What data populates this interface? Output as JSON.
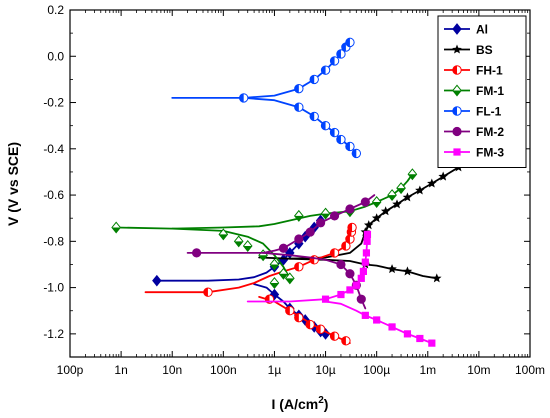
{
  "chart_data": {
    "type": "line",
    "x_scale": "log",
    "xlim": [
      1e-10,
      0.1
    ],
    "ylim": [
      -1.3,
      0.2
    ],
    "xlabel_main": "I (A/cm",
    "xlabel_sup": "2",
    "xlabel_tail": ")",
    "ylabel": "V (V vs SCE)",
    "grid": false,
    "legend_position": "top-right",
    "x_ticks": [
      {
        "v": 1e-10,
        "label": "100p"
      },
      {
        "v": 1e-09,
        "label": "1n"
      },
      {
        "v": 1e-08,
        "label": "10n"
      },
      {
        "v": 1e-07,
        "label": "100n"
      },
      {
        "v": 1e-06,
        "label": "1µ"
      },
      {
        "v": 1e-05,
        "label": "10µ"
      },
      {
        "v": 0.0001,
        "label": "100µ"
      },
      {
        "v": 0.001,
        "label": "1m"
      },
      {
        "v": 0.01,
        "label": "10m"
      },
      {
        "v": 0.1,
        "label": "100m"
      }
    ],
    "y_ticks": [
      {
        "v": 0.2,
        "label": "0.2"
      },
      {
        "v": 0.0,
        "label": "0.0"
      },
      {
        "v": -0.2,
        "label": "-0.2"
      },
      {
        "v": -0.4,
        "label": "-0.4"
      },
      {
        "v": -0.6,
        "label": "-0.6"
      },
      {
        "v": -0.8,
        "label": "-0.8"
      },
      {
        "v": -1.0,
        "label": "-1.0"
      },
      {
        "v": -1.2,
        "label": "-1.2"
      }
    ],
    "series": [
      {
        "name": "Al",
        "color": "#0000a0",
        "marker": "diamond",
        "curves": [
          [
            [
              5e-09,
              -0.97
            ],
            [
              5e-08,
              -0.97
            ],
            [
              2e-07,
              -0.965
            ],
            [
              4e-07,
              -0.955
            ],
            [
              7e-07,
              -0.935
            ],
            [
              1e-06,
              -0.91
            ],
            [
              1.5e-06,
              -0.88
            ],
            [
              2e-06,
              -0.85
            ],
            [
              3e-06,
              -0.81
            ],
            [
              4e-06,
              -0.78
            ],
            [
              6e-06,
              -0.74
            ],
            [
              8e-06,
              -0.71
            ]
          ],
          [
            [
              4e-07,
              -0.985
            ],
            [
              7e-07,
              -1.0
            ],
            [
              1e-06,
              -1.03
            ],
            [
              1.5e-06,
              -1.06
            ],
            [
              2e-06,
              -1.09
            ],
            [
              3e-06,
              -1.12
            ],
            [
              4e-06,
              -1.14
            ],
            [
              6e-06,
              -1.17
            ],
            [
              8e-06,
              -1.19
            ],
            [
              1e-05,
              -1.2
            ]
          ]
        ],
        "markers": [
          [
            5e-09,
            -0.97
          ],
          [
            1e-06,
            -0.91
          ],
          [
            1.5e-06,
            -0.88
          ],
          [
            2e-06,
            -0.85
          ],
          [
            3e-06,
            -0.81
          ],
          [
            4e-06,
            -0.78
          ],
          [
            6e-06,
            -0.74
          ],
          [
            8e-06,
            -0.71
          ],
          [
            1e-06,
            -1.03
          ],
          [
            2e-06,
            -1.09
          ],
          [
            3e-06,
            -1.12
          ],
          [
            4e-06,
            -1.14
          ],
          [
            6e-06,
            -1.17
          ],
          [
            8e-06,
            -1.19
          ],
          [
            1e-05,
            -1.2
          ]
        ]
      },
      {
        "name": "BS",
        "color": "#000000",
        "marker": "star",
        "curves": [
          [
            [
              5e-07,
              -0.87
            ],
            [
              2e-06,
              -0.875
            ],
            [
              1e-05,
              -0.88
            ],
            [
              3e-05,
              -0.885
            ],
            [
              6e-05,
              -0.9
            ],
            [
              0.0001,
              -0.905
            ],
            [
              0.0002,
              -0.92
            ],
            [
              0.0004,
              -0.93
            ],
            [
              0.0008,
              -0.95
            ],
            [
              0.0015,
              -0.96
            ]
          ],
          [
            [
              2e-06,
              -0.875
            ],
            [
              1e-05,
              -0.87
            ],
            [
              3e-05,
              -0.85
            ],
            [
              5e-05,
              -0.81
            ],
            [
              6e-05,
              -0.76
            ],
            [
              7e-05,
              -0.73
            ],
            [
              0.0001,
              -0.7
            ],
            [
              0.00015,
              -0.67
            ],
            [
              0.00025,
              -0.64
            ],
            [
              0.0004,
              -0.61
            ],
            [
              0.0007,
              -0.58
            ],
            [
              0.0012,
              -0.55
            ],
            [
              0.002,
              -0.52
            ],
            [
              0.004,
              -0.48
            ]
          ]
        ],
        "markers": [
          [
            6e-05,
            -0.9
          ],
          [
            0.0002,
            -0.92
          ],
          [
            0.0004,
            -0.93
          ],
          [
            0.0015,
            -0.96
          ],
          [
            6e-05,
            -0.76
          ],
          [
            7e-05,
            -0.73
          ],
          [
            0.0001,
            -0.7
          ],
          [
            0.00015,
            -0.67
          ],
          [
            0.00025,
            -0.64
          ],
          [
            0.0004,
            -0.61
          ],
          [
            0.0007,
            -0.58
          ],
          [
            0.0012,
            -0.55
          ],
          [
            0.002,
            -0.52
          ],
          [
            0.004,
            -0.48
          ]
        ]
      },
      {
        "name": "FH-1",
        "color": "#ff0000",
        "marker": "half-circle",
        "curves": [
          [
            [
              3e-09,
              -1.02
            ],
            [
              5e-08,
              -1.02
            ],
            [
              2e-07,
              -1.0
            ],
            [
              4e-07,
              -0.98
            ],
            [
              8e-07,
              -0.95
            ],
            [
              1.5e-06,
              -0.93
            ],
            [
              3e-06,
              -0.91
            ],
            [
              6e-06,
              -0.88
            ],
            [
              1.5e-05,
              -0.85
            ],
            [
              2.5e-05,
              -0.82
            ],
            [
              3e-05,
              -0.79
            ],
            [
              3.2e-05,
              -0.76
            ],
            [
              3.3e-05,
              -0.74
            ]
          ],
          [
            [
              5e-07,
              -1.04
            ],
            [
              1e-06,
              -1.06
            ],
            [
              2e-06,
              -1.1
            ],
            [
              4e-06,
              -1.14
            ],
            [
              8e-06,
              -1.18
            ],
            [
              1.5e-05,
              -1.21
            ],
            [
              2.5e-05,
              -1.23
            ],
            [
              3e-05,
              -1.24
            ]
          ]
        ],
        "markers": [
          [
            5e-08,
            -1.02
          ],
          [
            8e-07,
            -1.05
          ],
          [
            2e-06,
            -1.1
          ],
          [
            3e-06,
            -1.13
          ],
          [
            5e-06,
            -1.16
          ],
          [
            8e-06,
            -1.18
          ],
          [
            1.5e-05,
            -1.21
          ],
          [
            2.5e-05,
            -1.23
          ],
          [
            3e-06,
            -0.91
          ],
          [
            6e-06,
            -0.88
          ],
          [
            1.5e-05,
            -0.85
          ],
          [
            2.5e-05,
            -0.82
          ],
          [
            3e-05,
            -0.79
          ],
          [
            3.2e-05,
            -0.76
          ],
          [
            3.3e-05,
            -0.74
          ]
        ]
      },
      {
        "name": "FM-1",
        "color": "#008000",
        "marker": "half-diamond",
        "curves": [
          [
            [
              8e-10,
              -0.74
            ],
            [
              1e-08,
              -0.745
            ],
            [
              1e-07,
              -0.755
            ],
            [
              3e-07,
              -0.78
            ],
            [
              6e-07,
              -0.81
            ],
            [
              1e-06,
              -0.86
            ],
            [
              1.5e-06,
              -0.91
            ],
            [
              2e-06,
              -0.96
            ]
          ],
          [
            [
              1e-08,
              -0.745
            ],
            [
              1e-07,
              -0.74
            ],
            [
              5e-07,
              -0.735
            ],
            [
              1e-06,
              -0.725
            ],
            [
              2e-06,
              -0.71
            ],
            [
              5e-06,
              -0.69
            ],
            [
              1e-05,
              -0.68
            ],
            [
              3e-05,
              -0.67
            ],
            [
              6e-05,
              -0.65
            ],
            [
              0.0001,
              -0.63
            ],
            [
              0.0002,
              -0.6
            ],
            [
              0.0003,
              -0.57
            ],
            [
              0.0004,
              -0.54
            ],
            [
              0.0005,
              -0.51
            ]
          ]
        ],
        "markers": [
          [
            8e-10,
            -0.74
          ],
          [
            1e-07,
            -0.77
          ],
          [
            2e-07,
            -0.8
          ],
          [
            3e-07,
            -0.82
          ],
          [
            6e-07,
            -0.86
          ],
          [
            1e-06,
            -0.9
          ],
          [
            1.5e-06,
            -0.94
          ],
          [
            2e-06,
            -0.96
          ],
          [
            1e-06,
            -0.98
          ],
          [
            3e-06,
            -0.69
          ],
          [
            1e-05,
            -0.68
          ],
          [
            3e-05,
            -0.67
          ],
          [
            0.0001,
            -0.63
          ],
          [
            0.0002,
            -0.6
          ],
          [
            0.0003,
            -0.57
          ],
          [
            0.0005,
            -0.51
          ]
        ]
      },
      {
        "name": "FL-1",
        "color": "#0044ff",
        "marker": "half-circle",
        "curves": [
          [
            [
              1e-08,
              -0.18
            ],
            [
              1e-07,
              -0.18
            ],
            [
              2.5e-07,
              -0.18
            ],
            [
              1e-06,
              -0.17
            ],
            [
              3e-06,
              -0.14
            ],
            [
              6e-06,
              -0.1
            ],
            [
              1e-05,
              -0.06
            ],
            [
              1.5e-05,
              -0.02
            ],
            [
              2e-05,
              0.01
            ],
            [
              2.5e-05,
              0.04
            ],
            [
              3e-05,
              0.06
            ]
          ],
          [
            [
              2.5e-07,
              -0.18
            ],
            [
              1e-06,
              -0.19
            ],
            [
              3e-06,
              -0.22
            ],
            [
              6e-06,
              -0.26
            ],
            [
              1e-05,
              -0.3
            ],
            [
              1.5e-05,
              -0.33
            ],
            [
              2e-05,
              -0.36
            ],
            [
              3e-05,
              -0.39
            ],
            [
              4e-05,
              -0.42
            ]
          ]
        ],
        "markers": [
          [
            2.5e-07,
            -0.18
          ],
          [
            3e-06,
            -0.14
          ],
          [
            6e-06,
            -0.1
          ],
          [
            1e-05,
            -0.06
          ],
          [
            1.5e-05,
            -0.02
          ],
          [
            2e-05,
            0.01
          ],
          [
            2.5e-05,
            0.04
          ],
          [
            3e-05,
            0.06
          ],
          [
            3e-06,
            -0.22
          ],
          [
            6e-06,
            -0.26
          ],
          [
            1e-05,
            -0.3
          ],
          [
            1.5e-05,
            -0.33
          ],
          [
            2e-05,
            -0.36
          ],
          [
            3e-05,
            -0.39
          ],
          [
            4e-05,
            -0.42
          ]
        ]
      },
      {
        "name": "FM-2",
        "color": "#800080",
        "marker": "circle",
        "curves": [
          [
            [
              2e-08,
              -0.85
            ],
            [
              2e-07,
              -0.85
            ],
            [
              6e-07,
              -0.85
            ],
            [
              1e-06,
              -0.84
            ],
            [
              1.5e-06,
              -0.83
            ],
            [
              3e-06,
              -0.79
            ],
            [
              5e-06,
              -0.76
            ],
            [
              8e-06,
              -0.72
            ],
            [
              1.5e-05,
              -0.69
            ],
            [
              3e-05,
              -0.66
            ],
            [
              6e-05,
              -0.63
            ],
            [
              9e-05,
              -0.6
            ]
          ],
          [
            [
              6e-07,
              -0.85
            ],
            [
              2e-06,
              -0.86
            ],
            [
              5e-06,
              -0.87
            ],
            [
              1e-05,
              -0.88
            ],
            [
              2e-05,
              -0.9
            ],
            [
              3e-05,
              -0.94
            ],
            [
              4e-05,
              -0.99
            ],
            [
              5e-05,
              -1.05
            ],
            [
              6e-05,
              -1.09
            ]
          ]
        ],
        "markers": [
          [
            3e-08,
            -0.85
          ],
          [
            1.5e-06,
            -0.83
          ],
          [
            3e-06,
            -0.79
          ],
          [
            5e-06,
            -0.76
          ],
          [
            8e-06,
            -0.72
          ],
          [
            1.5e-05,
            -0.69
          ],
          [
            3e-05,
            -0.66
          ],
          [
            6e-05,
            -0.63
          ],
          [
            2e-05,
            -0.9
          ],
          [
            3e-05,
            -0.94
          ],
          [
            4e-05,
            -0.99
          ],
          [
            5e-05,
            -1.05
          ]
        ]
      },
      {
        "name": "FM-3",
        "color": "#ff00ff",
        "marker": "square",
        "curves": [
          [
            [
              3e-07,
              -1.06
            ],
            [
              2e-06,
              -1.06
            ],
            [
              1e-05,
              -1.05
            ],
            [
              2e-05,
              -1.03
            ],
            [
              3e-05,
              -1.01
            ],
            [
              4e-05,
              -0.99
            ],
            [
              5e-05,
              -0.96
            ],
            [
              5.5e-05,
              -0.93
            ],
            [
              6e-05,
              -0.89
            ],
            [
              6.3e-05,
              -0.85
            ],
            [
              6.5e-05,
              -0.8
            ],
            [
              6.6e-05,
              -0.77
            ]
          ],
          [
            [
              1e-05,
              -1.06
            ],
            [
              2e-05,
              -1.07
            ],
            [
              4e-05,
              -1.1
            ],
            [
              6e-05,
              -1.12
            ],
            [
              0.0001,
              -1.14
            ],
            [
              0.0002,
              -1.17
            ],
            [
              0.0004,
              -1.2
            ],
            [
              0.0007,
              -1.22
            ],
            [
              0.0012,
              -1.24
            ]
          ]
        ],
        "markers": [
          [
            1e-05,
            -1.05
          ],
          [
            2e-05,
            -1.03
          ],
          [
            3e-05,
            -1.01
          ],
          [
            4e-05,
            -0.99
          ],
          [
            5e-05,
            -0.96
          ],
          [
            5.5e-05,
            -0.93
          ],
          [
            6e-05,
            -0.89
          ],
          [
            6.3e-05,
            -0.85
          ],
          [
            6.5e-05,
            -0.8
          ],
          [
            6.6e-05,
            -0.77
          ],
          [
            6e-05,
            -1.12
          ],
          [
            0.0001,
            -1.14
          ],
          [
            0.0002,
            -1.17
          ],
          [
            0.0004,
            -1.2
          ],
          [
            0.0007,
            -1.22
          ],
          [
            0.0012,
            -1.24
          ]
        ]
      }
    ]
  }
}
